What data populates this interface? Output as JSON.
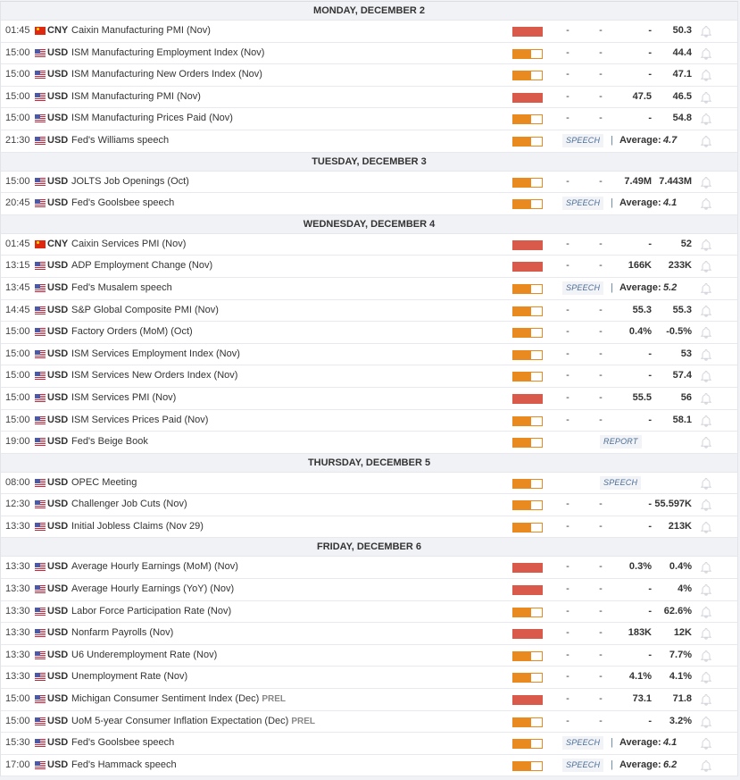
{
  "colors": {
    "high": "#d95a4a",
    "medium": "#e88a1f"
  },
  "average_label": "Average:",
  "days": [
    {
      "label": "MONDAY, DECEMBER 2",
      "events": [
        {
          "time": "01:45",
          "flag": "cn",
          "currency": "CNY",
          "name": "Caixin Manufacturing PMI (Nov)",
          "impact": "high",
          "actual": "-",
          "deviation": "-",
          "consensus": "-",
          "previous": "50.3"
        },
        {
          "time": "15:00",
          "flag": "us",
          "currency": "USD",
          "name": "ISM Manufacturing Employment Index (Nov)",
          "impact": "medium",
          "actual": "-",
          "deviation": "-",
          "consensus": "-",
          "previous": "44.4"
        },
        {
          "time": "15:00",
          "flag": "us",
          "currency": "USD",
          "name": "ISM Manufacturing New Orders Index (Nov)",
          "impact": "medium",
          "actual": "-",
          "deviation": "-",
          "consensus": "-",
          "previous": "47.1"
        },
        {
          "time": "15:00",
          "flag": "us",
          "currency": "USD",
          "name": "ISM Manufacturing PMI (Nov)",
          "impact": "high",
          "actual": "-",
          "deviation": "-",
          "consensus": "47.5",
          "previous": "46.5"
        },
        {
          "time": "15:00",
          "flag": "us",
          "currency": "USD",
          "name": "ISM Manufacturing Prices Paid (Nov)",
          "impact": "medium",
          "actual": "-",
          "deviation": "-",
          "consensus": "-",
          "previous": "54.8"
        },
        {
          "time": "21:30",
          "flag": "us",
          "currency": "USD",
          "name": "Fed's Williams speech",
          "impact": "medium",
          "badge": "SPEECH",
          "average": "4.7"
        }
      ]
    },
    {
      "label": "TUESDAY, DECEMBER 3",
      "events": [
        {
          "time": "15:00",
          "flag": "us",
          "currency": "USD",
          "name": "JOLTS Job Openings (Oct)",
          "impact": "medium",
          "actual": "-",
          "deviation": "-",
          "consensus": "7.49M",
          "previous": "7.443M"
        },
        {
          "time": "20:45",
          "flag": "us",
          "currency": "USD",
          "name": "Fed's Goolsbee speech",
          "impact": "medium",
          "badge": "SPEECH",
          "average": "4.1"
        }
      ]
    },
    {
      "label": "WEDNESDAY, DECEMBER 4",
      "events": [
        {
          "time": "01:45",
          "flag": "cn",
          "currency": "CNY",
          "name": "Caixin Services PMI (Nov)",
          "impact": "high",
          "actual": "-",
          "deviation": "-",
          "consensus": "-",
          "previous": "52"
        },
        {
          "time": "13:15",
          "flag": "us",
          "currency": "USD",
          "name": "ADP Employment Change (Nov)",
          "impact": "high",
          "actual": "-",
          "deviation": "-",
          "consensus": "166K",
          "previous": "233K"
        },
        {
          "time": "13:45",
          "flag": "us",
          "currency": "USD",
          "name": "Fed's Musalem speech",
          "impact": "medium",
          "badge": "SPEECH",
          "average": "5.2"
        },
        {
          "time": "14:45",
          "flag": "us",
          "currency": "USD",
          "name": "S&P Global Composite PMI (Nov)",
          "impact": "medium",
          "actual": "-",
          "deviation": "-",
          "consensus": "55.3",
          "previous": "55.3"
        },
        {
          "time": "15:00",
          "flag": "us",
          "currency": "USD",
          "name": "Factory Orders (MoM) (Oct)",
          "impact": "medium",
          "actual": "-",
          "deviation": "-",
          "consensus": "0.4%",
          "previous": "-0.5%"
        },
        {
          "time": "15:00",
          "flag": "us",
          "currency": "USD",
          "name": "ISM Services Employment Index (Nov)",
          "impact": "medium",
          "actual": "-",
          "deviation": "-",
          "consensus": "-",
          "previous": "53"
        },
        {
          "time": "15:00",
          "flag": "us",
          "currency": "USD",
          "name": "ISM Services New Orders Index (Nov)",
          "impact": "medium",
          "actual": "-",
          "deviation": "-",
          "consensus": "-",
          "previous": "57.4"
        },
        {
          "time": "15:00",
          "flag": "us",
          "currency": "USD",
          "name": "ISM Services PMI (Nov)",
          "impact": "high",
          "actual": "-",
          "deviation": "-",
          "consensus": "55.5",
          "previous": "56"
        },
        {
          "time": "15:00",
          "flag": "us",
          "currency": "USD",
          "name": "ISM Services Prices Paid (Nov)",
          "impact": "medium",
          "actual": "-",
          "deviation": "-",
          "consensus": "-",
          "previous": "58.1"
        },
        {
          "time": "19:00",
          "flag": "us",
          "currency": "USD",
          "name": "Fed's Beige Book",
          "impact": "medium",
          "badge_center": "REPORT"
        }
      ]
    },
    {
      "label": "THURSDAY, DECEMBER 5",
      "events": [
        {
          "time": "08:00",
          "flag": "us",
          "currency": "USD",
          "name": "OPEC Meeting",
          "impact": "medium",
          "badge_center": "SPEECH"
        },
        {
          "time": "12:30",
          "flag": "us",
          "currency": "USD",
          "name": "Challenger Job Cuts (Nov)",
          "impact": "medium",
          "actual": "-",
          "deviation": "-",
          "consensus": "-",
          "previous": "55.597K"
        },
        {
          "time": "13:30",
          "flag": "us",
          "currency": "USD",
          "name": "Initial Jobless Claims (Nov 29)",
          "impact": "medium",
          "actual": "-",
          "deviation": "-",
          "consensus": "-",
          "previous": "213K"
        }
      ]
    },
    {
      "label": "FRIDAY, DECEMBER 6",
      "events": [
        {
          "time": "13:30",
          "flag": "us",
          "currency": "USD",
          "name": "Average Hourly Earnings (MoM) (Nov)",
          "impact": "high",
          "actual": "-",
          "deviation": "-",
          "consensus": "0.3%",
          "previous": "0.4%"
        },
        {
          "time": "13:30",
          "flag": "us",
          "currency": "USD",
          "name": "Average Hourly Earnings (YoY) (Nov)",
          "impact": "high",
          "actual": "-",
          "deviation": "-",
          "consensus": "-",
          "previous": "4%"
        },
        {
          "time": "13:30",
          "flag": "us",
          "currency": "USD",
          "name": "Labor Force Participation Rate (Nov)",
          "impact": "medium",
          "actual": "-",
          "deviation": "-",
          "consensus": "-",
          "previous": "62.6%"
        },
        {
          "time": "13:30",
          "flag": "us",
          "currency": "USD",
          "name": "Nonfarm Payrolls (Nov)",
          "impact": "high",
          "actual": "-",
          "deviation": "-",
          "consensus": "183K",
          "previous": "12K"
        },
        {
          "time": "13:30",
          "flag": "us",
          "currency": "USD",
          "name": "U6 Underemployment Rate (Nov)",
          "impact": "medium",
          "actual": "-",
          "deviation": "-",
          "consensus": "-",
          "previous": "7.7%"
        },
        {
          "time": "13:30",
          "flag": "us",
          "currency": "USD",
          "name": "Unemployment Rate (Nov)",
          "impact": "medium",
          "actual": "-",
          "deviation": "-",
          "consensus": "4.1%",
          "previous": "4.1%"
        },
        {
          "time": "15:00",
          "flag": "us",
          "currency": "USD",
          "name": "Michigan Consumer Sentiment Index (Dec)",
          "tag": "PREL",
          "impact": "high",
          "actual": "-",
          "deviation": "-",
          "consensus": "73.1",
          "previous": "71.8"
        },
        {
          "time": "15:00",
          "flag": "us",
          "currency": "USD",
          "name": "UoM 5-year Consumer Inflation Expectation (Dec)",
          "tag": "PREL",
          "impact": "medium",
          "actual": "-",
          "deviation": "-",
          "consensus": "-",
          "previous": "3.2%"
        },
        {
          "time": "15:30",
          "flag": "us",
          "currency": "USD",
          "name": "Fed's Goolsbee speech",
          "impact": "medium",
          "badge": "SPEECH",
          "average": "4.1"
        },
        {
          "time": "17:00",
          "flag": "us",
          "currency": "USD",
          "name": "Fed's Hammack speech",
          "impact": "medium",
          "badge": "SPEECH",
          "average": "6.2"
        }
      ]
    }
  ]
}
